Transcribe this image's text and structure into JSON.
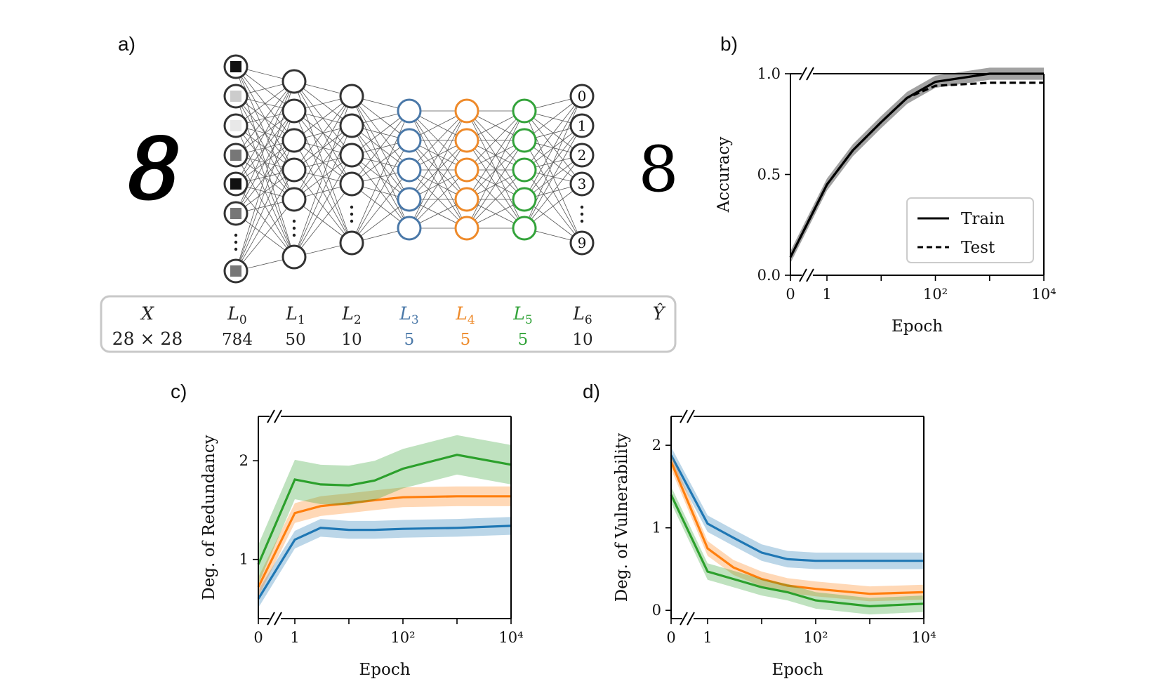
{
  "panels": {
    "a": "a)",
    "b": "b)",
    "c": "c)",
    "d": "d)"
  },
  "network": {
    "input_digit": "8",
    "output_digit": "8",
    "output_labels": [
      "0",
      "1",
      "2",
      "3",
      "9"
    ],
    "layers": [
      {
        "name": "X",
        "sub": "",
        "size": "28 × 28",
        "color": "#222222"
      },
      {
        "name": "L",
        "sub": "0",
        "size": "784",
        "color": "#222222"
      },
      {
        "name": "L",
        "sub": "1",
        "size": "50",
        "color": "#222222"
      },
      {
        "name": "L",
        "sub": "2",
        "size": "10",
        "color": "#222222"
      },
      {
        "name": "L",
        "sub": "3",
        "size": "5",
        "color": "#4a78a8"
      },
      {
        "name": "L",
        "sub": "4",
        "size": "5",
        "color": "#ee8a2a"
      },
      {
        "name": "L",
        "sub": "5",
        "size": "5",
        "color": "#33a33a"
      },
      {
        "name": "L",
        "sub": "6",
        "size": "10",
        "color": "#222222"
      },
      {
        "name": "Ŷ",
        "sub": "",
        "size": "",
        "color": "#222222"
      }
    ],
    "input_pixel_shades": [
      "#111111",
      "#cccccc",
      "#e8e8e8",
      "#777777",
      "#111111",
      "#777777",
      "#777777"
    ]
  },
  "colors": {
    "blue": "#1f77b4",
    "orange": "#ff7f0e",
    "green": "#2ca02c",
    "black": "#000000"
  },
  "chart_data": [
    {
      "id": "b",
      "type": "line",
      "xlabel": "Epoch",
      "ylabel": "Accuracy",
      "xticks": [
        "0",
        "1",
        "10²",
        "10⁴"
      ],
      "yticks": [
        "0.0",
        "0.5",
        "1.0"
      ],
      "ylim": [
        0,
        1
      ],
      "legend": [
        "Train",
        "Test"
      ],
      "legend_position": "lower-right",
      "x": [
        0,
        1,
        3,
        10,
        30,
        100,
        1000,
        10000
      ],
      "series": [
        {
          "name": "Train",
          "values": [
            0.09,
            0.45,
            0.62,
            0.76,
            0.88,
            0.96,
            1.0,
            1.0
          ],
          "band": 0.03
        },
        {
          "name": "Test",
          "values": [
            0.09,
            0.45,
            0.62,
            0.76,
            0.88,
            0.94,
            0.955,
            0.955
          ],
          "band": 0.03
        }
      ]
    },
    {
      "id": "c",
      "type": "line",
      "xlabel": "Epoch",
      "ylabel": "Deg. of Redundancy",
      "xticks": [
        "0",
        "1",
        "10²",
        "10⁴"
      ],
      "yticks": [
        "1",
        "2"
      ],
      "ylim": [
        0.4,
        2.45
      ],
      "x": [
        0,
        1,
        3,
        10,
        30,
        100,
        1000,
        10000
      ],
      "series": [
        {
          "name": "L3",
          "color": "blue",
          "values": [
            0.6,
            1.2,
            1.32,
            1.3,
            1.3,
            1.31,
            1.32,
            1.34
          ],
          "band": 0.09
        },
        {
          "name": "L4",
          "color": "orange",
          "values": [
            0.72,
            1.47,
            1.54,
            1.57,
            1.6,
            1.63,
            1.64,
            1.64
          ],
          "band": 0.1
        },
        {
          "name": "L5",
          "color": "green",
          "values": [
            0.95,
            1.81,
            1.76,
            1.75,
            1.8,
            1.92,
            2.06,
            1.96
          ],
          "band": 0.2
        }
      ]
    },
    {
      "id": "d",
      "type": "line",
      "xlabel": "Epoch",
      "ylabel": "Deg. of Vulnerability",
      "xticks": [
        "0",
        "1",
        "10²",
        "10⁴"
      ],
      "yticks": [
        "0",
        "1",
        "2"
      ],
      "ylim": [
        -0.1,
        2.35
      ],
      "x": [
        0,
        1,
        3,
        10,
        30,
        100,
        1000,
        10000
      ],
      "series": [
        {
          "name": "L3",
          "color": "blue",
          "values": [
            1.88,
            1.05,
            0.88,
            0.7,
            0.62,
            0.6,
            0.6,
            0.6
          ],
          "band": 0.1
        },
        {
          "name": "L4",
          "color": "orange",
          "values": [
            1.8,
            0.75,
            0.52,
            0.38,
            0.3,
            0.26,
            0.2,
            0.22
          ],
          "band": 0.09
        },
        {
          "name": "L5",
          "color": "green",
          "values": [
            1.4,
            0.47,
            0.38,
            0.28,
            0.22,
            0.12,
            0.05,
            0.08
          ],
          "band": 0.1
        }
      ]
    }
  ]
}
